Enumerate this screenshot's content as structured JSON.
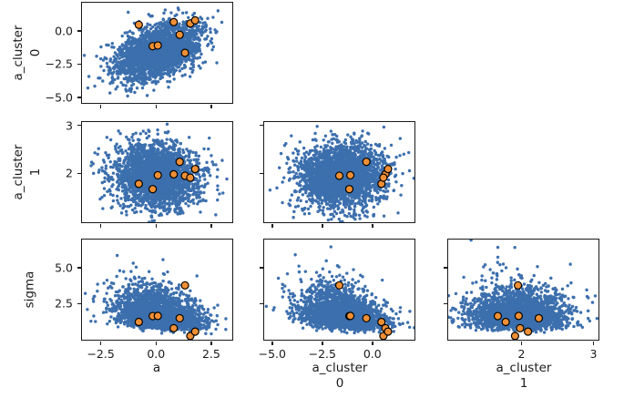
{
  "chart_data": {
    "type": "scatter_matrix",
    "title": "",
    "description": "Lower-triangle pair plot (corner plot) of posterior samples; dense blue point clouds with 8 highlighted orange samples",
    "grid": {
      "n_rows": 3,
      "n_cols": 3,
      "lower_triangle_only": true
    },
    "marker_color": "#3c6fad",
    "highlight_color": "#ef8f35",
    "highlight_edge_color": "#000000",
    "spine_color": "#1a1a1a",
    "n_cloud_points": 2600,
    "variables": {
      "a": {
        "name": "a",
        "dist": "normal",
        "mean": 0.05,
        "sd": 0.95,
        "range": [
          -3.35,
          3.45
        ],
        "ticks": [
          -2.5,
          0.0,
          2.5
        ],
        "tick_labels": [
          "−2.5",
          "0.0",
          "2.5"
        ]
      },
      "a_cluster_0": {
        "name": "a_cluster 0",
        "dist": "normal",
        "mean": -1.55,
        "sd": 1.05,
        "range": [
          -5.4,
          2.1
        ],
        "ticks": [
          -5.0,
          -2.5,
          0.0
        ],
        "tick_labels": [
          "−5.0",
          "−2.5",
          "0.0"
        ]
      },
      "a_cluster_1": {
        "name": "a_cluster 1",
        "dist": "normal",
        "mean": 1.95,
        "sd": 0.33,
        "range": [
          0.98,
          3.07
        ],
        "ticks": [
          2,
          3
        ],
        "tick_labels": [
          "2",
          "3"
        ]
      },
      "sigma": {
        "name": "sigma",
        "dist": "lognormal",
        "mu": 0.55,
        "s": 0.38,
        "range": [
          0.0,
          6.95
        ],
        "ticks": [
          2.5,
          5.0
        ],
        "tick_labels": [
          "2.5",
          "5.0"
        ]
      }
    },
    "panels": [
      {
        "row": 0,
        "col": 0,
        "x": "a",
        "y": "a_cluster_0",
        "corr": 0.45,
        "seed": 11
      },
      {
        "row": 1,
        "col": 0,
        "x": "a",
        "y": "a_cluster_1",
        "corr": -0.05,
        "seed": 22
      },
      {
        "row": 1,
        "col": 1,
        "x": "a_cluster_0",
        "y": "a_cluster_1",
        "corr": 0.05,
        "seed": 33
      },
      {
        "row": 2,
        "col": 0,
        "x": "a",
        "y": "sigma",
        "corr": -0.3,
        "seed": 44
      },
      {
        "row": 2,
        "col": 1,
        "x": "a_cluster_0",
        "y": "sigma",
        "corr": -0.35,
        "seed": 55
      },
      {
        "row": 2,
        "col": 2,
        "x": "a_cluster_1",
        "y": "sigma",
        "corr": 0.0,
        "seed": 66
      }
    ],
    "highlighted_samples": {
      "a": [
        -0.78,
        -0.15,
        0.08,
        0.8,
        1.07,
        1.31,
        1.55,
        1.77
      ],
      "a_cluster_0": [
        0.45,
        -1.15,
        -1.1,
        0.65,
        -0.3,
        -1.65,
        0.55,
        0.78
      ],
      "a_cluster_1": [
        1.78,
        1.67,
        1.96,
        1.98,
        2.24,
        1.95,
        1.91,
        2.09
      ],
      "sigma": [
        1.23,
        1.64,
        1.65,
        0.8,
        1.49,
        3.77,
        0.26,
        0.56
      ]
    },
    "x_axis_labels": [
      [
        "a"
      ],
      [
        "a_cluster",
        "0"
      ],
      [
        "a_cluster",
        "1"
      ]
    ],
    "y_axis_labels": [
      [
        "a_cluster",
        "0"
      ],
      [
        "a_cluster",
        "1"
      ],
      [
        "sigma"
      ]
    ]
  }
}
